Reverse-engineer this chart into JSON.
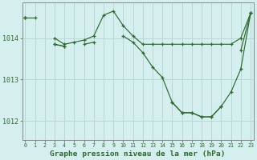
{
  "background_color": "#d5eeee",
  "grid_color": "#b8d8d8",
  "line_color": "#2d6a2d",
  "title": "Graphe pression niveau de la mer (hPa)",
  "ylabel_values": [
    1012,
    1013,
    1014
  ],
  "xlim": [
    -0.3,
    23.3
  ],
  "ylim": [
    1011.55,
    1014.85
  ],
  "hours": [
    0,
    1,
    2,
    3,
    4,
    5,
    6,
    7,
    8,
    9,
    10,
    11,
    12,
    13,
    14,
    15,
    16,
    17,
    18,
    19,
    20,
    21,
    22,
    23
  ],
  "series1": [
    1014.5,
    1014.5,
    null,
    1014.0,
    1013.85,
    1013.9,
    1013.95,
    1014.05,
    1014.55,
    1014.65,
    1014.3,
    1014.05,
    1013.85,
    1013.85,
    1013.85,
    1013.85,
    1013.85,
    1013.85,
    1013.85,
    1013.85,
    1013.85,
    1013.85,
    1014.0,
    1014.6
  ],
  "series2": [
    1014.5,
    null,
    null,
    1013.85,
    1013.8,
    null,
    1013.85,
    1013.9,
    null,
    null,
    1014.05,
    1013.9,
    1013.65,
    1013.3,
    1013.05,
    1012.45,
    1012.2,
    1012.2,
    1012.1,
    1012.1,
    1012.35,
    null,
    1013.7,
    1014.6
  ],
  "series3": [
    1014.5,
    null,
    null,
    1013.85,
    1013.8,
    null,
    null,
    null,
    null,
    null,
    null,
    null,
    null,
    null,
    null,
    1012.45,
    1012.2,
    1012.2,
    1012.1,
    1012.1,
    1012.35,
    1012.7,
    1013.25,
    1014.6
  ],
  "tick_labels": [
    "0",
    "1",
    "2",
    "3",
    "4",
    "5",
    "6",
    "7",
    "8",
    "9",
    "10",
    "11",
    "12",
    "13",
    "14",
    "15",
    "16",
    "17",
    "18",
    "19",
    "20",
    "21",
    "22",
    "23"
  ]
}
